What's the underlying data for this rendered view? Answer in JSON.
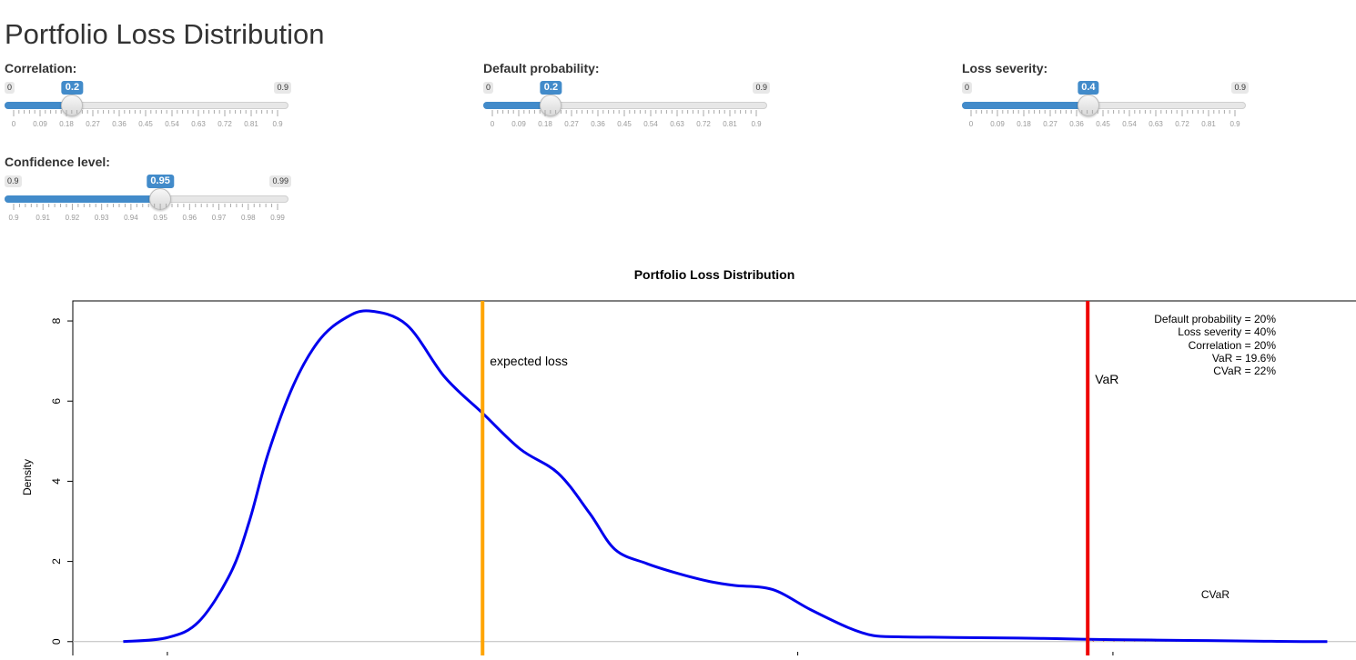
{
  "page": {
    "title": "Portfolio Loss Distribution"
  },
  "sliders": [
    {
      "id": "correlation",
      "label": "Correlation:",
      "min": 0,
      "max": 0.9,
      "value": 0.2,
      "min_label": "0",
      "max_label": "0.9",
      "value_label": "0.2",
      "ticks": [
        "0",
        "0.09",
        "0.18",
        "0.27",
        "0.36",
        "0.45",
        "0.54",
        "0.63",
        "0.72",
        "0.81",
        "0.9"
      ]
    },
    {
      "id": "default-probability",
      "label": "Default probability:",
      "min": 0,
      "max": 0.9,
      "value": 0.2,
      "min_label": "0",
      "max_label": "0.9",
      "value_label": "0.2",
      "ticks": [
        "0",
        "0.09",
        "0.18",
        "0.27",
        "0.36",
        "0.45",
        "0.54",
        "0.63",
        "0.72",
        "0.81",
        "0.9"
      ]
    },
    {
      "id": "loss-severity",
      "label": "Loss severity:",
      "min": 0,
      "max": 0.9,
      "value": 0.4,
      "min_label": "0",
      "max_label": "0.9",
      "value_label": "0.4",
      "ticks": [
        "0",
        "0.09",
        "0.18",
        "0.27",
        "0.36",
        "0.45",
        "0.54",
        "0.63",
        "0.72",
        "0.81",
        "0.9"
      ]
    },
    {
      "id": "confidence-level",
      "label": "Confidence level:",
      "min": 0.9,
      "max": 0.99,
      "value": 0.95,
      "min_label": "0.9",
      "max_label": "0.99",
      "value_label": "0.95",
      "ticks": [
        "0.9",
        "0.91",
        "0.92",
        "0.93",
        "0.94",
        "0.95",
        "0.96",
        "0.97",
        "0.98",
        "0.99"
      ]
    }
  ],
  "colors": {
    "slider_accent": "#428bca",
    "density_line": "#0000ee",
    "expected_loss_line": "#ffa500",
    "var_line": "#ee0000",
    "cvar_hatch": "#ee0000"
  },
  "chart_data": {
    "type": "line",
    "title": "Portfolio Loss Distribution",
    "xlabel": "",
    "ylabel": "Density",
    "ylim": [
      -0.3,
      8.5
    ],
    "xlim": [
      0.035,
      0.24
    ],
    "y_ticks": [
      "0",
      "2",
      "4",
      "6",
      "8"
    ],
    "series": [
      {
        "x": [
          0.043,
          0.05,
          0.055,
          0.06,
          0.063,
          0.066,
          0.07,
          0.074,
          0.078,
          0.082,
          0.088,
          0.094,
          0.1,
          0.106,
          0.112,
          0.117,
          0.121,
          0.126,
          0.131,
          0.136,
          0.14,
          0.146,
          0.152,
          0.158,
          0.162,
          0.166,
          0.171,
          0.177,
          0.183,
          0.189,
          0.195,
          0.2,
          0.206,
          0.212,
          0.218,
          0.224,
          0.23,
          0.234
        ],
        "y": [
          0.0,
          0.1,
          0.5,
          1.7,
          3.0,
          4.7,
          6.4,
          7.5,
          8.05,
          8.25,
          7.9,
          6.6,
          5.7,
          4.8,
          4.2,
          3.2,
          2.3,
          1.95,
          1.7,
          1.5,
          1.4,
          1.3,
          0.8,
          0.35,
          0.15,
          0.12,
          0.11,
          0.1,
          0.09,
          0.08,
          0.06,
          0.05,
          0.04,
          0.03,
          0.02,
          0.01,
          0.0,
          0.0
        ]
      }
    ],
    "expected_loss": 0.1,
    "var": 0.196,
    "expected_loss_label": "expected loss",
    "var_label": "VaR",
    "cvar_label": "CVaR",
    "legend_lines": [
      "Default probability = 20%",
      "Loss severity = 40%",
      "Correlation = 20%",
      "VaR = 19.6%",
      "CVaR = 22%"
    ],
    "legend_position": "top-right",
    "grid": false
  }
}
